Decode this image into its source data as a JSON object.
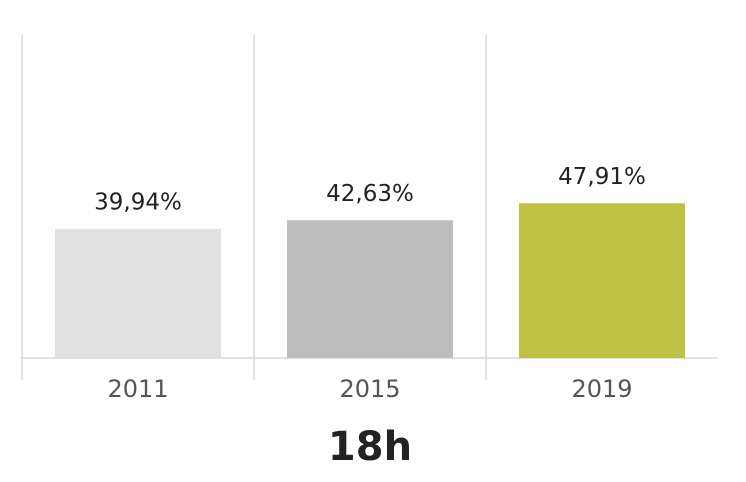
{
  "chart_data": {
    "type": "bar",
    "x_label": "18h",
    "categories": [
      "2011",
      "2015",
      "2019"
    ],
    "values": [
      39.94,
      42.63,
      47.91
    ],
    "value_labels": [
      "39,94%",
      "42,63%",
      "47,91%"
    ],
    "colors": [
      "#e1e1e1",
      "#bdbdbd",
      "#bec242"
    ],
    "ylim": [
      0,
      100
    ]
  }
}
